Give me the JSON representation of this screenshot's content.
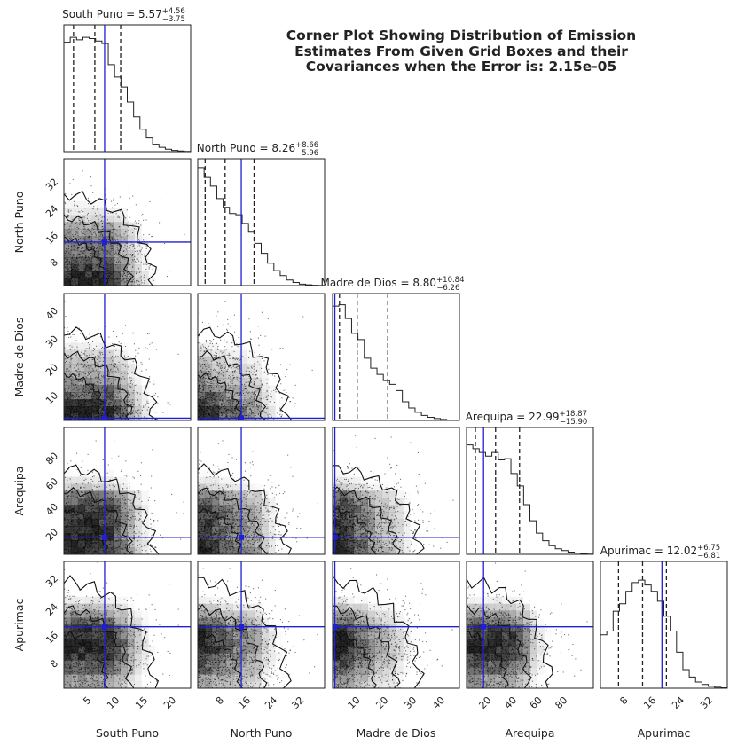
{
  "chart_data": {
    "type": "corner",
    "title_lines": [
      "Corner Plot Showing Distribution of Emission",
      "Estimates From Given Grid Boxes and their",
      "Covariances when the Error is: 2.15e-05"
    ],
    "parameters": [
      {
        "name": "South Puno",
        "median": "5.57",
        "plus": "+4.56",
        "minus": "−3.75",
        "truth": 7.3,
        "quantiles": [
          1.8,
          5.57,
          10.13
        ],
        "range": [
          0.1,
          22.5
        ],
        "ticks": [
          5,
          10,
          15,
          20
        ],
        "hist": [
          0.88,
          0.92,
          0.9,
          0.92,
          0.91,
          0.89,
          0.87,
          0.7,
          0.6,
          0.52,
          0.4,
          0.28,
          0.18,
          0.11,
          0.06,
          0.035,
          0.02,
          0.01,
          0.005,
          0.002
        ]
      },
      {
        "name": "North Puno",
        "median": "8.26",
        "plus": "+8.66",
        "minus": "−5.96",
        "truth": 13.1,
        "quantiles": [
          2.3,
          8.26,
          16.92
        ],
        "range": [
          0.1,
          38
        ],
        "ticks": [
          8,
          16,
          24,
          32
        ],
        "hist": [
          0.95,
          0.87,
          0.8,
          0.7,
          0.63,
          0.58,
          0.57,
          0.5,
          0.43,
          0.34,
          0.26,
          0.18,
          0.12,
          0.08,
          0.045,
          0.025,
          0.012,
          0.006,
          0.003,
          0.001
        ]
      },
      {
        "name": "Madre de Dios",
        "median": "8.80",
        "plus": "+10.84",
        "minus": "−6.26",
        "truth": 0.9,
        "quantiles": [
          2.54,
          8.8,
          19.64
        ],
        "range": [
          0.1,
          45
        ],
        "ticks": [
          10,
          20,
          30,
          40
        ],
        "hist": [
          0.92,
          0.93,
          0.82,
          0.7,
          0.65,
          0.5,
          0.42,
          0.37,
          0.32,
          0.29,
          0.24,
          0.15,
          0.1,
          0.065,
          0.04,
          0.025,
          0.015,
          0.008,
          0.004,
          0.002
        ]
      },
      {
        "name": "Arequipa",
        "median": "22.99",
        "plus": "+18.87",
        "minus": "−15.90",
        "truth": 13.5,
        "quantiles": [
          7.09,
          22.99,
          41.86
        ],
        "range": [
          0.1,
          100
        ],
        "ticks": [
          20,
          40,
          60,
          80
        ],
        "hist": [
          0.88,
          0.85,
          0.82,
          0.79,
          0.82,
          0.76,
          0.77,
          0.65,
          0.55,
          0.4,
          0.27,
          0.17,
          0.11,
          0.07,
          0.045,
          0.03,
          0.018,
          0.01,
          0.005,
          0.002
        ]
      },
      {
        "name": "Apurimac",
        "median": "12.02",
        "plus": "+6.75",
        "minus": "−6.81",
        "truth": 17.5,
        "quantiles": [
          5.21,
          12.02,
          18.77
        ],
        "range": [
          0.1,
          36
        ],
        "ticks": [
          8,
          16,
          24,
          32
        ],
        "hist": [
          0.43,
          0.46,
          0.62,
          0.68,
          0.78,
          0.85,
          0.87,
          0.83,
          0.78,
          0.7,
          0.58,
          0.46,
          0.29,
          0.15,
          0.09,
          0.05,
          0.03,
          0.015,
          0.008,
          0.004
        ]
      }
    ],
    "colors": {
      "truth": "#1f1fd6",
      "axes": "#222222",
      "density": "#000000",
      "points": "#000000"
    }
  }
}
